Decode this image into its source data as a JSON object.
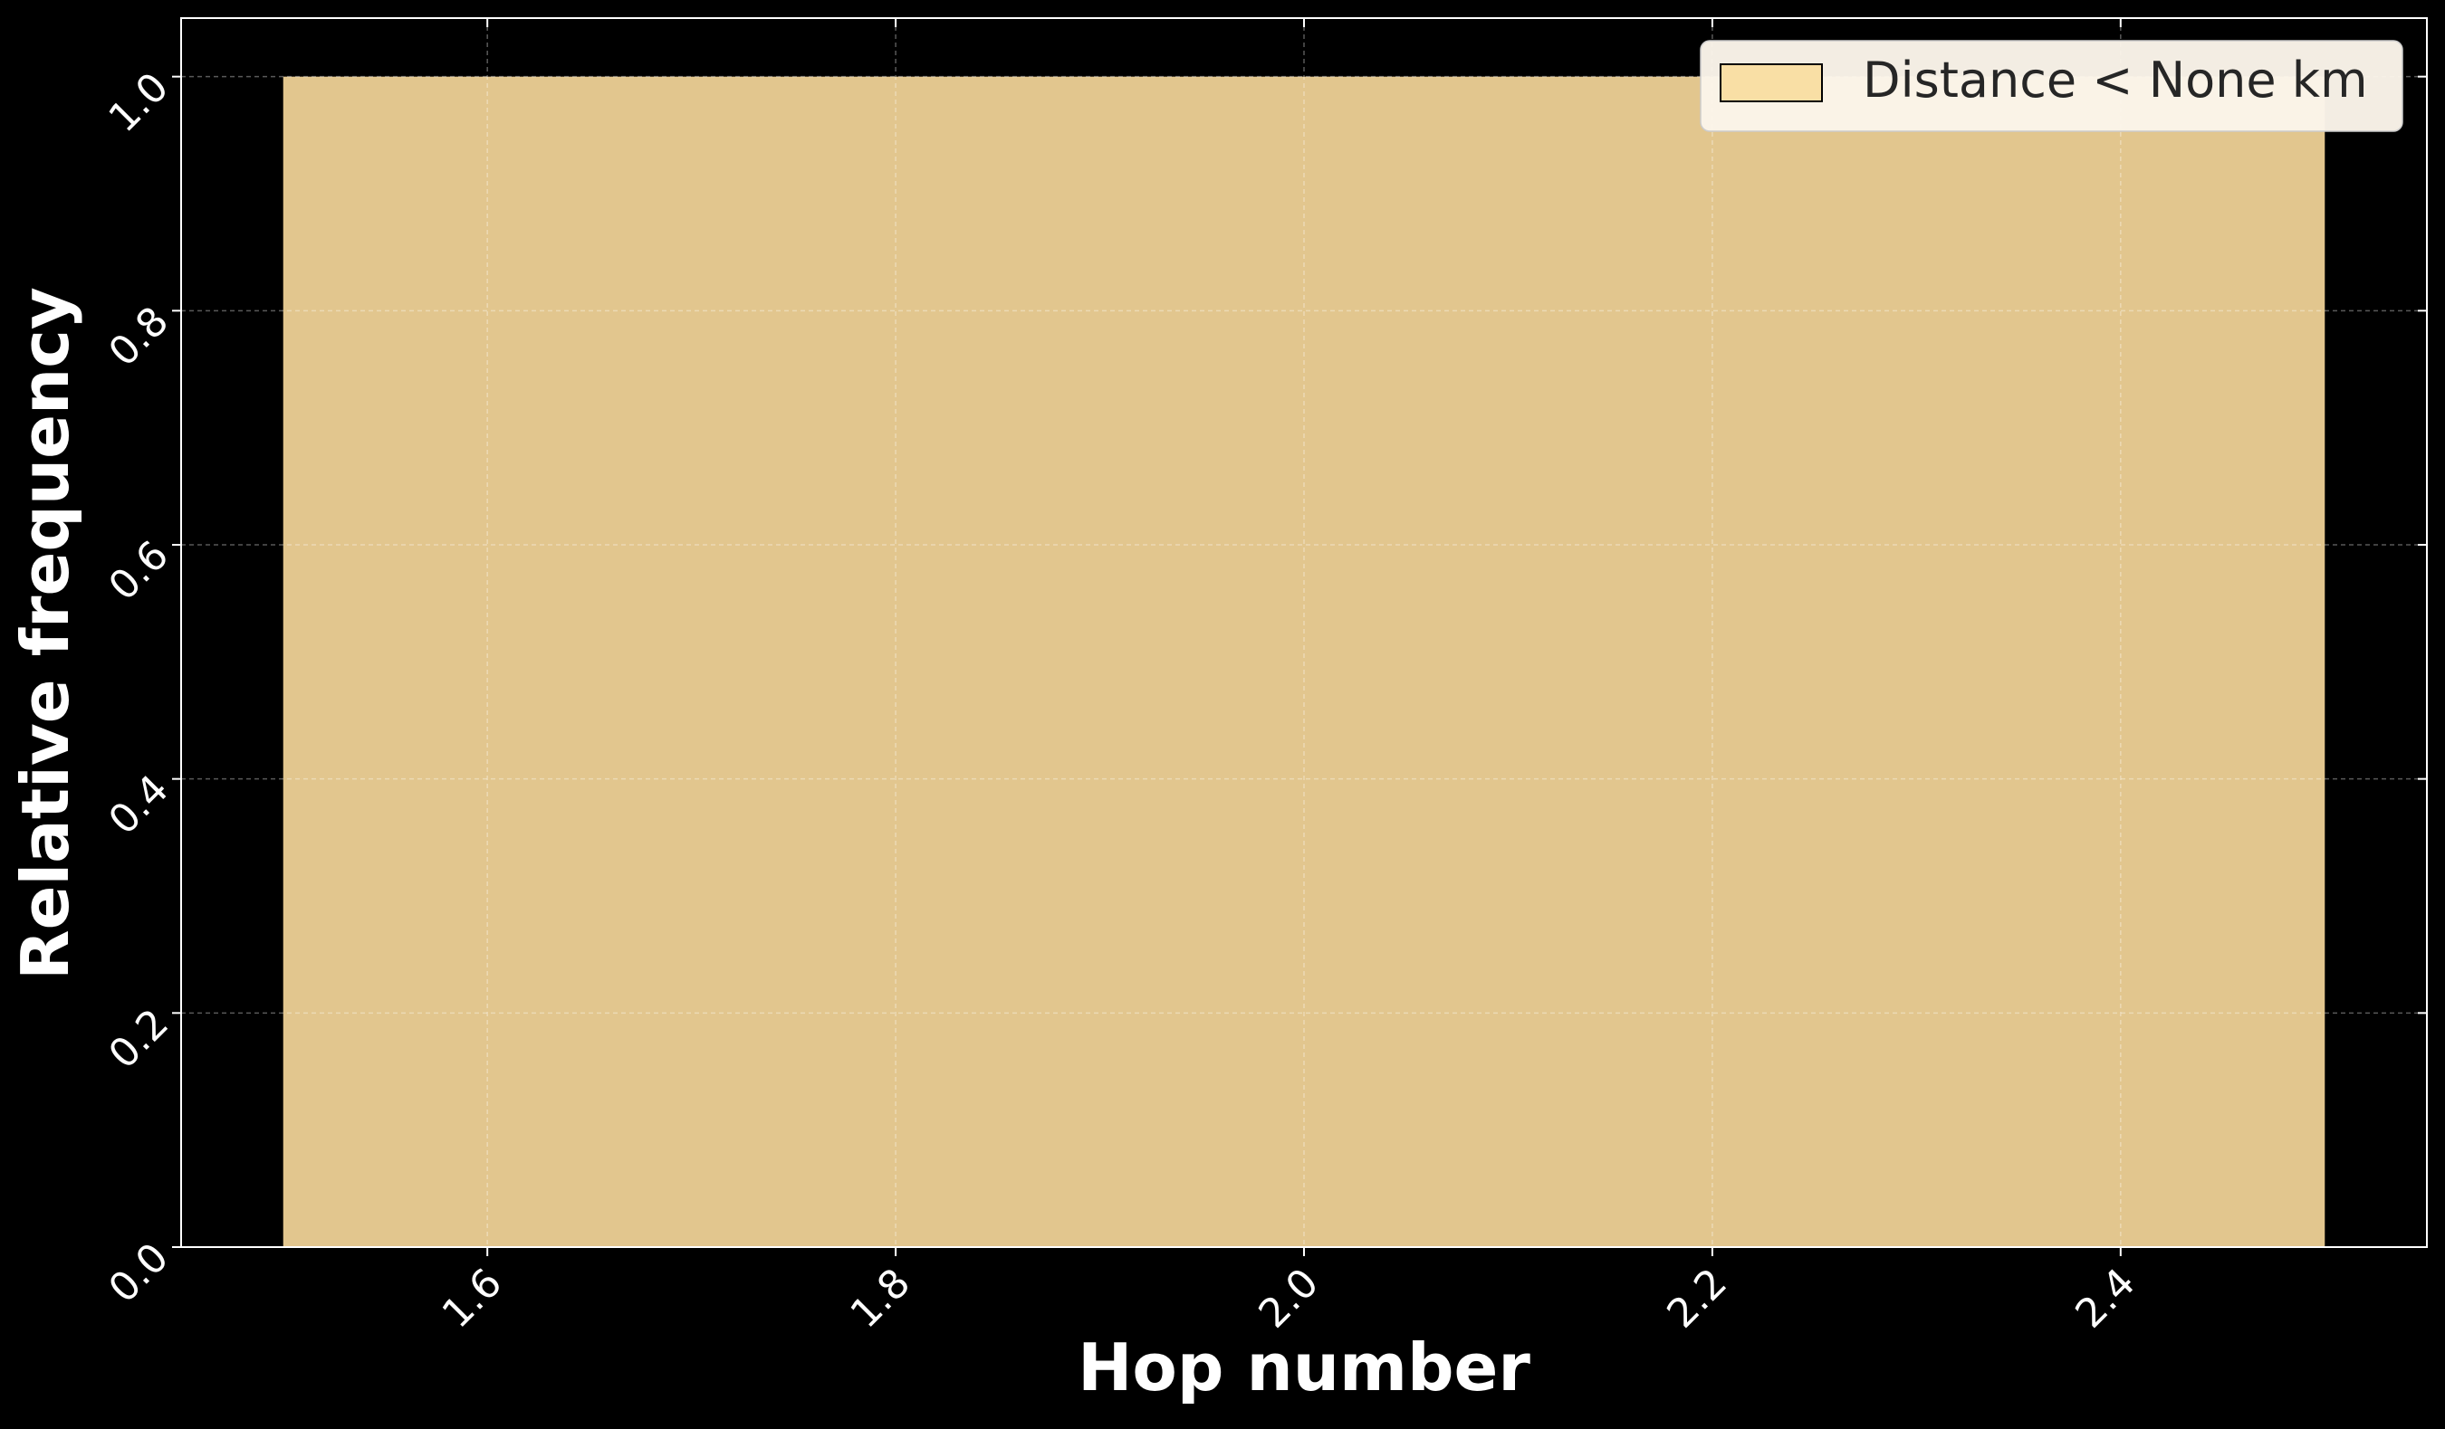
{
  "chart_data": {
    "type": "bar",
    "title": "",
    "xlabel": "Hop number",
    "ylabel": "Relative frequency",
    "xlim": [
      1.45,
      2.55
    ],
    "ylim": [
      0.0,
      1.05
    ],
    "x_ticks": [
      "1.6",
      "1.8",
      "2.0",
      "2.2",
      "2.4"
    ],
    "x_tick_values": [
      1.6,
      1.8,
      2.0,
      2.2,
      2.4
    ],
    "y_ticks": [
      "0.0",
      "0.2",
      "0.4",
      "0.6",
      "0.8",
      "1.0"
    ],
    "y_tick_values": [
      0.0,
      0.2,
      0.4,
      0.6,
      0.8,
      1.0
    ],
    "grid": true,
    "legend": {
      "position": "top-right",
      "entries": [
        "Distance < None km"
      ]
    },
    "bars": [
      {
        "x_start": 1.5,
        "x_end": 2.5,
        "value": 1.0
      }
    ],
    "colors": {
      "background": "#000000",
      "bar_fill": "#e2c68e",
      "legend_patch": "#f9dfa5",
      "legend_box": "#fbf5ea",
      "legend_text": "#262626",
      "axis": "#ffffff",
      "text": "#ffffff"
    }
  }
}
